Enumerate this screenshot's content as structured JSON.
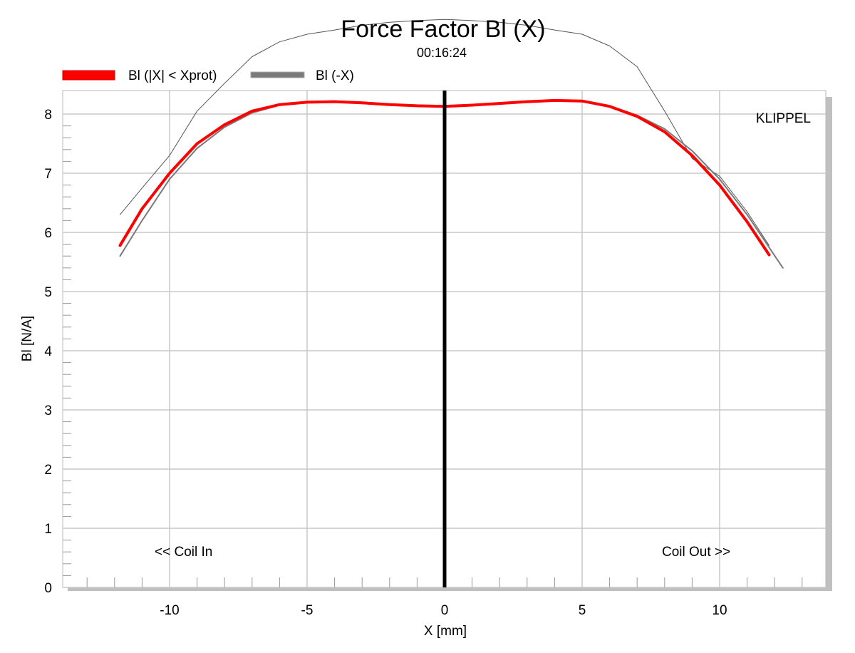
{
  "chart_data": {
    "type": "line",
    "title": "Force Factor Bl (X)",
    "subtitle": "00:16:24",
    "xlabel": "X [mm]",
    "ylabel": "Bl [N/A]",
    "xlim": [
      -14,
      14
    ],
    "ylim": [
      0,
      8.4
    ],
    "xticks": [
      -10,
      -5,
      0,
      5,
      10
    ],
    "yticks": [
      0,
      1,
      2,
      3,
      4,
      5,
      6,
      7,
      8
    ],
    "grid": true,
    "legend_position": "top-left",
    "brand": "KLIPPEL",
    "annotations": [
      "<< Coil In",
      "Coil Out >>"
    ],
    "vertical_marker_x": 0,
    "series": [
      {
        "name": "Bl (|X| < Xprot)",
        "color": "#ff0000",
        "x": [
          -11.8,
          -11,
          -10,
          -9,
          -8,
          -7,
          -6,
          -5,
          -4,
          -3,
          -2,
          -1,
          0,
          1,
          2,
          3,
          4,
          5,
          6,
          7,
          8,
          9,
          10,
          11,
          11.8
        ],
        "y": [
          5.78,
          6.4,
          7.0,
          7.5,
          7.82,
          8.05,
          8.16,
          8.2,
          8.21,
          8.19,
          8.16,
          8.14,
          8.13,
          8.15,
          8.18,
          8.21,
          8.23,
          8.22,
          8.13,
          7.96,
          7.7,
          7.3,
          6.8,
          6.18,
          5.62
        ]
      },
      {
        "name": "Bl (-X)",
        "color": "#7a7a7a",
        "x": [
          -11.8,
          -11,
          -10,
          -9,
          -8,
          -7,
          -6,
          -5,
          -4,
          -3,
          -2,
          -1,
          0,
          1,
          2,
          3,
          4,
          5,
          6,
          7,
          8,
          9,
          10,
          11,
          12.3
        ],
        "y": [
          5.6,
          6.2,
          6.9,
          7.42,
          7.78,
          8.02,
          8.15,
          8.21,
          8.22,
          8.2,
          8.16,
          8.14,
          8.13,
          8.15,
          8.19,
          8.22,
          8.23,
          8.21,
          8.14,
          7.98,
          7.75,
          7.38,
          6.9,
          6.3,
          5.4
        ]
      }
    ],
    "unlabeled_series": [
      {
        "color": "#555555",
        "x": [
          -11.8,
          -11,
          -10,
          -9,
          -8,
          -7,
          -6,
          -5,
          -4,
          -3,
          -2,
          -1,
          0,
          1,
          2,
          3,
          4,
          5,
          6,
          7,
          8,
          9,
          10,
          11,
          11.8
        ],
        "y": [
          6.3,
          6.75,
          7.3,
          8.05,
          8.52,
          8.97,
          9.22,
          9.35,
          9.42,
          9.5,
          9.55,
          9.58,
          9.6,
          9.58,
          9.55,
          9.5,
          9.42,
          9.35,
          9.15,
          8.8,
          8.05,
          7.25,
          6.95,
          6.35,
          5.78
        ]
      }
    ]
  }
}
